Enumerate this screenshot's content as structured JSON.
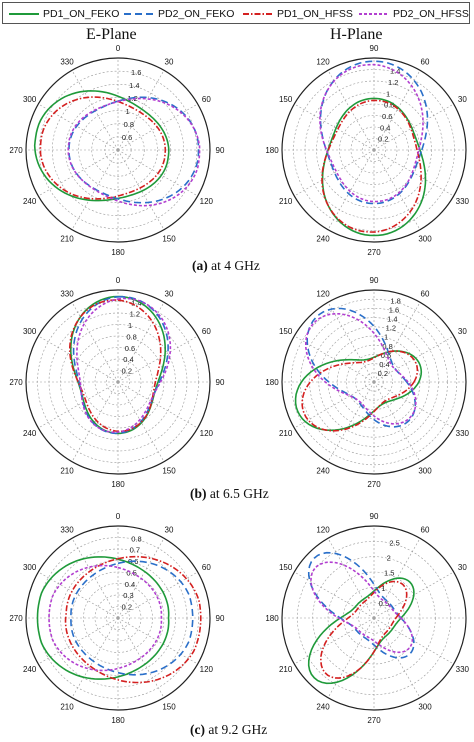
{
  "legend": [
    {
      "name": "PD1_ON_FEKO",
      "color": "#1f9a3a",
      "dash": ""
    },
    {
      "name": "PD2_ON_FEKO",
      "color": "#2a6fc9",
      "dash": "7,4"
    },
    {
      "name": "PD1_ON_HFSS",
      "color": "#d42020",
      "dash": "6,2,1.5,2"
    },
    {
      "name": "PD2_ON_HFSS",
      "color": "#b23fd0",
      "dash": "3,2"
    }
  ],
  "column_titles": {
    "e_plane": "E-Plane",
    "h_plane": "H-Plane"
  },
  "captions": [
    {
      "label": "(a)",
      "text": " at 4 GHz"
    },
    {
      "label": "(b)",
      "text": " at 6.5 GHz"
    },
    {
      "label": "(c)",
      "text": " at 9.2 GHz"
    }
  ],
  "chart_data": [
    {
      "type": "polar",
      "title": "E-Plane",
      "rmax": 1.6,
      "zero_at": "top",
      "angle_labels": [
        "0",
        "30",
        "60",
        "90",
        "120",
        "150",
        "180",
        "210",
        "240",
        "270",
        "300",
        "330"
      ],
      "radial_ticks": [
        "0.6",
        "0.8",
        "1",
        "1.2",
        "1.4",
        "1.6"
      ],
      "series": [
        {
          "name": "PD1_ON_FEKO",
          "r0": 1.45,
          "lobe_dir": 280,
          "lobe_w": 60
        },
        {
          "name": "PD2_ON_FEKO",
          "r0": 1.4,
          "lobe_dir": 90,
          "lobe_w": 60
        },
        {
          "name": "PD1_ON_HFSS",
          "r0": 1.35,
          "lobe_dir": 275,
          "lobe_w": 60
        },
        {
          "name": "PD2_ON_HFSS",
          "r0": 1.42,
          "lobe_dir": 95,
          "lobe_w": 60
        }
      ]
    },
    {
      "type": "polar",
      "title": "H-Plane",
      "rmax": 1.4,
      "zero_at": "right",
      "angle_labels": [
        "0",
        "30",
        "60",
        "90",
        "120",
        "150",
        "180",
        "210",
        "240",
        "270",
        "300",
        "330"
      ],
      "radial_ticks": [
        "0.2",
        "0.4",
        "0.6",
        "0.8",
        "1",
        "1.2",
        "1.4"
      ],
      "series": [
        {
          "name": "PD1_ON_FEKO",
          "r0": 1.3,
          "lobe_dir": 270,
          "lobe_w": 55
        },
        {
          "name": "PD2_ON_FEKO",
          "r0": 1.35,
          "lobe_dir": 90,
          "lobe_w": 55
        },
        {
          "name": "PD1_ON_HFSS",
          "r0": 1.25,
          "lobe_dir": 265,
          "lobe_w": 55
        },
        {
          "name": "PD2_ON_HFSS",
          "r0": 1.3,
          "lobe_dir": 95,
          "lobe_w": 55
        }
      ]
    },
    {
      "type": "polar",
      "title": "E-Plane",
      "rmax": 1.4,
      "zero_at": "top",
      "angle_labels": [
        "0",
        "30",
        "60",
        "90",
        "120",
        "150",
        "180",
        "210",
        "240",
        "270",
        "300",
        "330"
      ],
      "radial_ticks": [
        "0.2",
        "0.4",
        "0.6",
        "0.8",
        "1",
        "1.2",
        "1.4"
      ],
      "series": [
        {
          "name": "PD1_ON_FEKO",
          "r0": 1.3,
          "lobe_dir": 0,
          "lobe_w": 50
        },
        {
          "name": "PD2_ON_FEKO",
          "r0": 1.3,
          "lobe_dir": 5,
          "lobe_w": 50
        },
        {
          "name": "PD1_ON_HFSS",
          "r0": 1.25,
          "lobe_dir": 355,
          "lobe_w": 50
        },
        {
          "name": "PD2_ON_HFSS",
          "r0": 1.28,
          "lobe_dir": 10,
          "lobe_w": 50
        }
      ]
    },
    {
      "type": "polar",
      "title": "H-Plane",
      "rmax": 1.8,
      "zero_at": "right",
      "angle_labels": [
        "0",
        "30",
        "60",
        "90",
        "120",
        "150",
        "180",
        "210",
        "240",
        "270",
        "300",
        "330"
      ],
      "radial_ticks": [
        "0.2",
        "0.4",
        "0.6",
        "0.8",
        "1",
        "1.2",
        "1.4",
        "1.6",
        "1.8"
      ],
      "series": [
        {
          "name": "PD1_ON_FEKO",
          "r0": 1.6,
          "lobe_dir": 200,
          "lobe_w": 35
        },
        {
          "name": "PD2_ON_FEKO",
          "r0": 1.7,
          "lobe_dir": 130,
          "lobe_w": 35
        },
        {
          "name": "PD1_ON_HFSS",
          "r0": 1.5,
          "lobe_dir": 205,
          "lobe_w": 35
        },
        {
          "name": "PD2_ON_HFSS",
          "r0": 1.65,
          "lobe_dir": 135,
          "lobe_w": 35
        }
      ]
    },
    {
      "type": "polar",
      "title": "E-Plane",
      "rmax": 0.8,
      "zero_at": "top",
      "angle_labels": [
        "0",
        "30",
        "60",
        "90",
        "120",
        "150",
        "180",
        "210",
        "240",
        "270",
        "300",
        "330"
      ],
      "radial_ticks": [
        "0.2",
        "0.3",
        "0.4",
        "0.5",
        "0.6",
        "0.7",
        "0.8"
      ],
      "series": [
        {
          "name": "PD1_ON_FEKO",
          "r0": 0.7,
          "lobe_dir": 270,
          "lobe_w": 70
        },
        {
          "name": "PD2_ON_FEKO",
          "r0": 0.65,
          "lobe_dir": 90,
          "lobe_w": 70
        },
        {
          "name": "PD1_ON_HFSS",
          "r0": 0.72,
          "lobe_dir": 95,
          "lobe_w": 70
        },
        {
          "name": "PD2_ON_HFSS",
          "r0": 0.6,
          "lobe_dir": 270,
          "lobe_w": 70
        }
      ]
    },
    {
      "type": "polar",
      "title": "H-Plane",
      "rmax": 2.5,
      "zero_at": "right",
      "angle_labels": [
        "0",
        "30",
        "60",
        "90",
        "120",
        "150",
        "180",
        "210",
        "240",
        "270",
        "300",
        "330"
      ],
      "radial_ticks": [
        "0.5",
        "1",
        "1.5",
        "2",
        "2.5"
      ],
      "series": [
        {
          "name": "PD1_ON_FEKO",
          "r0": 2.3,
          "lobe_dir": 225,
          "lobe_w": 25
        },
        {
          "name": "PD2_ON_FEKO",
          "r0": 2.3,
          "lobe_dir": 135,
          "lobe_w": 25
        },
        {
          "name": "PD1_ON_HFSS",
          "r0": 2.0,
          "lobe_dir": 230,
          "lobe_w": 25
        },
        {
          "name": "PD2_ON_HFSS",
          "r0": 2.1,
          "lobe_dir": 140,
          "lobe_w": 25
        }
      ]
    }
  ]
}
